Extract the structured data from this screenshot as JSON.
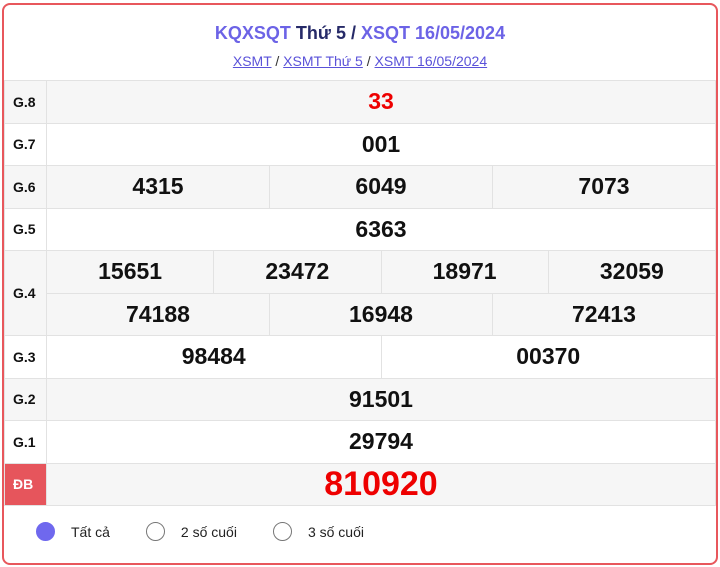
{
  "header": {
    "title_a": "KQXSQT",
    "title_b": "Thứ 5 /",
    "title_c": "XSQT 16/05/2024",
    "crumbs": [
      "XSMT",
      "XSMT Thứ 5",
      "XSMT 16/05/2024"
    ],
    "sep": "/"
  },
  "prizes": {
    "g8": {
      "label": "G.8",
      "values": [
        "33"
      ]
    },
    "g7": {
      "label": "G.7",
      "values": [
        "001"
      ]
    },
    "g6": {
      "label": "G.6",
      "values": [
        "4315",
        "6049",
        "7073"
      ]
    },
    "g5": {
      "label": "G.5",
      "values": [
        "6363"
      ]
    },
    "g4": {
      "label": "G.4",
      "values": [
        "15651",
        "23472",
        "18971",
        "32059",
        "74188",
        "16948",
        "72413"
      ]
    },
    "g3": {
      "label": "G.3",
      "values": [
        "98484",
        "00370"
      ]
    },
    "g2": {
      "label": "G.2",
      "values": [
        "91501"
      ]
    },
    "g1": {
      "label": "G.1",
      "values": [
        "29794"
      ]
    },
    "db": {
      "label": "ĐB",
      "values": [
        "810920"
      ]
    }
  },
  "filter": {
    "options": [
      "Tất cả",
      "2 số cuối",
      "3 số cuối"
    ],
    "selected": "Tất cả"
  },
  "colors": {
    "accent": "#6c63e6",
    "special": "#e00000",
    "border": "#e8575c"
  }
}
